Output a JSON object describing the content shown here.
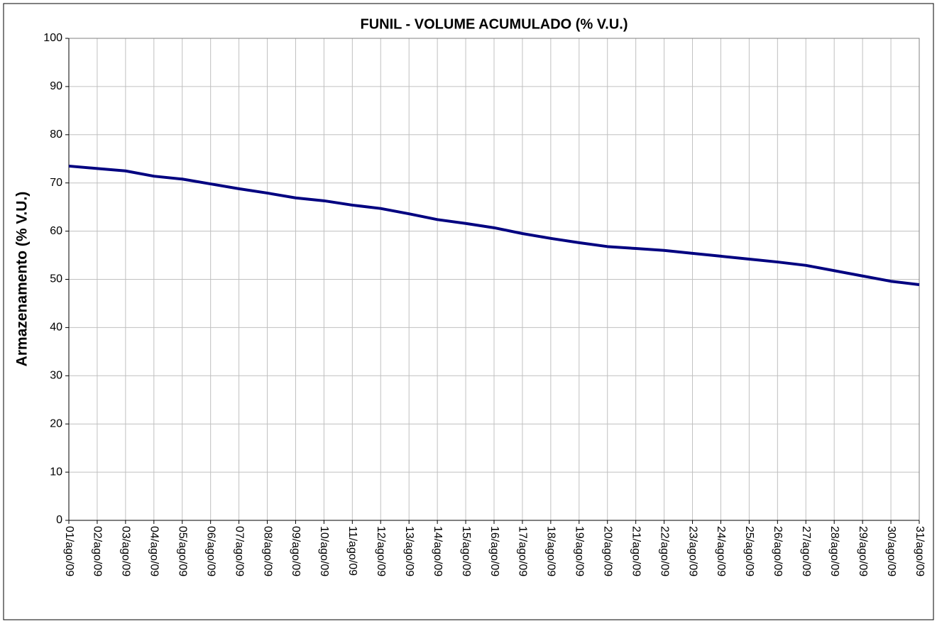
{
  "chart_data": {
    "type": "line",
    "title": "FUNIL - VOLUME ACUMULADO (% V.U.)",
    "y_label": "Armazenamento (% V.U.)",
    "categories": [
      "01/ago/09",
      "02/ago/09",
      "03/ago/09",
      "04/ago/09",
      "05/ago/09",
      "06/ago/09",
      "07/ago/09",
      "08/ago/09",
      "09/ago/09",
      "10/ago/09",
      "11/ago/09",
      "12/ago/09",
      "13/ago/09",
      "14/ago/09",
      "15/ago/09",
      "16/ago/09",
      "17/ago/09",
      "18/ago/09",
      "19/ago/09",
      "20/ago/09",
      "21/ago/09",
      "22/ago/09",
      "23/ago/09",
      "24/ago/09",
      "25/ago/09",
      "26/ago/09",
      "27/ago/09",
      "28/ago/09",
      "29/ago/09",
      "30/ago/09",
      "31/ago/09"
    ],
    "values": [
      73.5,
      73.0,
      72.5,
      71.4,
      70.8,
      69.8,
      68.8,
      67.9,
      66.9,
      66.3,
      65.4,
      64.7,
      63.6,
      62.4,
      61.6,
      60.7,
      59.5,
      58.5,
      57.6,
      56.8,
      56.4,
      56.0,
      55.4,
      54.8,
      54.2,
      53.6,
      52.9,
      51.8,
      50.7,
      49.6,
      48.9
    ],
    "color": "#000080",
    "ylim": [
      0,
      100
    ],
    "yticks": [
      0,
      10,
      20,
      30,
      40,
      50,
      60,
      70,
      80,
      90,
      100
    ],
    "grid": true
  }
}
